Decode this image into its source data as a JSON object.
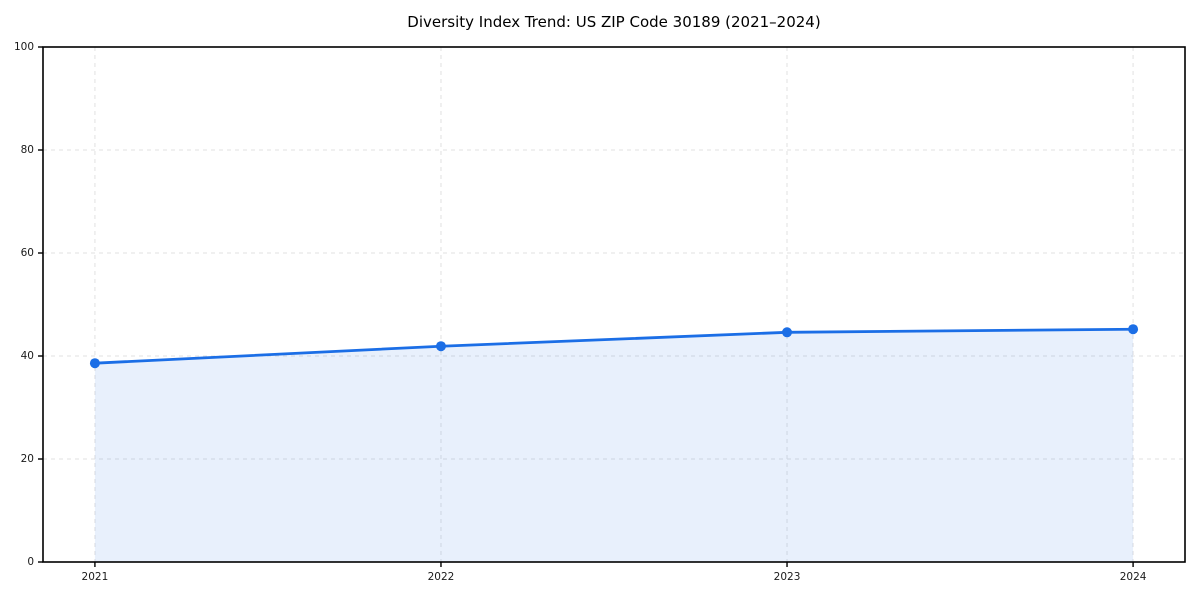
{
  "chart_data": {
    "type": "line",
    "title": "Diversity Index Trend: US ZIP Code 30189 (2021–2024)",
    "x": [
      2021,
      2022,
      2023,
      2024
    ],
    "values": [
      38.6,
      41.9,
      44.6,
      45.2
    ],
    "xlabel": "",
    "ylabel": "",
    "xticks": [
      2021,
      2022,
      2023,
      2024
    ],
    "yticks": [
      0,
      20,
      40,
      60,
      80,
      100
    ],
    "xlim": [
      2020.85,
      2024.15
    ],
    "ylim": [
      0,
      100
    ],
    "grid": true,
    "grid_style": "dashed",
    "legend": false,
    "area_fill": true,
    "area_opacity": 0.1,
    "marker": "circle",
    "colors": {
      "line": "#1b6ee6",
      "marker": "#1b6ee6",
      "area": "#1b6ee6",
      "grid": "#e1e1e1",
      "axis": "#000000",
      "tick_label": "#1a1a1a",
      "title": "#000000",
      "background": "#ffffff"
    }
  }
}
